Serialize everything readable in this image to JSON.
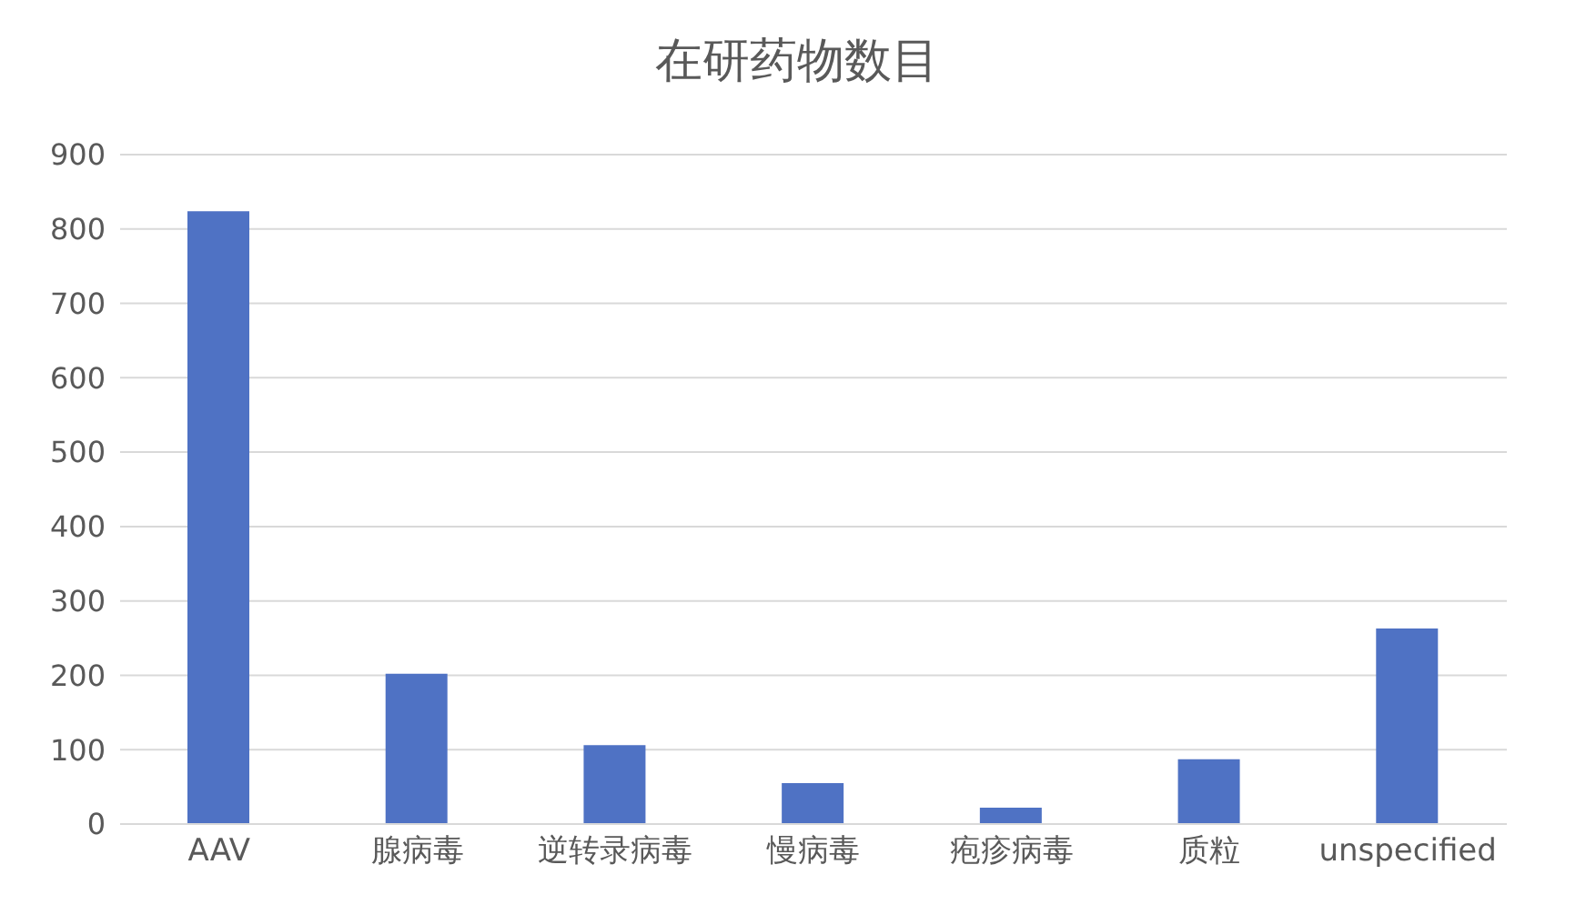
{
  "chart_data": {
    "type": "bar",
    "title": "在研药物数目",
    "categories": [
      "AAV",
      "腺病毒",
      "逆转录病毒",
      "慢病毒",
      "疱疹病毒",
      "质粒",
      "unspecified"
    ],
    "values": [
      824,
      202,
      106,
      55,
      22,
      87,
      263
    ],
    "color": "#4f72c4",
    "ylim": [
      0,
      900
    ],
    "yticks": [
      0,
      100,
      200,
      300,
      400,
      500,
      600,
      700,
      800,
      900
    ],
    "grid": "y"
  }
}
